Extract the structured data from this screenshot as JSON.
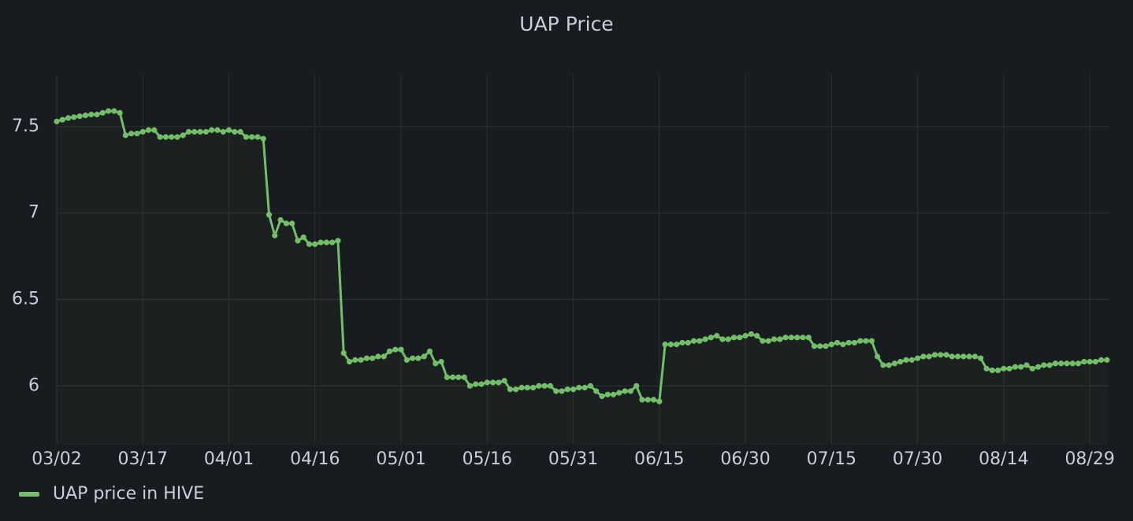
{
  "chart_data": {
    "type": "line",
    "title": "UAP Price",
    "x": [
      "03/02",
      "03/03",
      "03/04",
      "03/05",
      "03/06",
      "03/07",
      "03/08",
      "03/09",
      "03/10",
      "03/11",
      "03/12",
      "03/13",
      "03/14",
      "03/15",
      "03/16",
      "03/17",
      "03/18",
      "03/19",
      "03/20",
      "03/21",
      "03/22",
      "03/23",
      "03/24",
      "03/25",
      "03/26",
      "03/27",
      "03/28",
      "03/29",
      "03/30",
      "03/31",
      "04/01",
      "04/02",
      "04/03",
      "04/04",
      "04/05",
      "04/06",
      "04/07",
      "04/08",
      "04/09",
      "04/10",
      "04/11",
      "04/12",
      "04/13",
      "04/14",
      "04/15",
      "04/16",
      "04/17",
      "04/18",
      "04/19",
      "04/20",
      "04/21",
      "04/22",
      "04/23",
      "04/24",
      "04/25",
      "04/26",
      "04/27",
      "04/28",
      "04/29",
      "04/30",
      "05/01",
      "05/02",
      "05/03",
      "05/04",
      "05/05",
      "05/06",
      "05/07",
      "05/08",
      "05/09",
      "05/10",
      "05/11",
      "05/12",
      "05/13",
      "05/14",
      "05/15",
      "05/16",
      "05/17",
      "05/18",
      "05/19",
      "05/20",
      "05/21",
      "05/22",
      "05/23",
      "05/24",
      "05/25",
      "05/26",
      "05/27",
      "05/28",
      "05/29",
      "05/30",
      "05/31",
      "06/01",
      "06/02",
      "06/03",
      "06/04",
      "06/05",
      "06/06",
      "06/07",
      "06/08",
      "06/09",
      "06/10",
      "06/11",
      "06/12",
      "06/13",
      "06/14",
      "06/15",
      "06/16",
      "06/17",
      "06/18",
      "06/19",
      "06/20",
      "06/21",
      "06/22",
      "06/23",
      "06/24",
      "06/25",
      "06/26",
      "06/27",
      "06/28",
      "06/29",
      "06/30",
      "07/01",
      "07/02",
      "07/03",
      "07/04",
      "07/05",
      "07/06",
      "07/07",
      "07/08",
      "07/09",
      "07/10",
      "07/11",
      "07/12",
      "07/13",
      "07/14",
      "07/15",
      "07/16",
      "07/17",
      "07/18",
      "07/19",
      "07/20",
      "07/21",
      "07/22",
      "07/23",
      "07/24",
      "07/25",
      "07/26",
      "07/27",
      "07/28",
      "07/29",
      "07/30",
      "07/31",
      "08/01",
      "08/02",
      "08/03",
      "08/04",
      "08/05",
      "08/06",
      "08/07",
      "08/08",
      "08/09",
      "08/10",
      "08/11",
      "08/12",
      "08/13",
      "08/14",
      "08/15",
      "08/16",
      "08/17",
      "08/18",
      "08/19",
      "08/20",
      "08/21",
      "08/22",
      "08/23",
      "08/24",
      "08/25",
      "08/26",
      "08/27",
      "08/28",
      "08/29",
      "08/30",
      "08/31",
      "09/01"
    ],
    "series": [
      {
        "name": "UAP price in HIVE",
        "color": "#73bf69",
        "values": [
          7.53,
          7.54,
          7.55,
          7.555,
          7.56,
          7.565,
          7.57,
          7.57,
          7.58,
          7.59,
          7.59,
          7.58,
          7.45,
          7.46,
          7.46,
          7.47,
          7.48,
          7.48,
          7.44,
          7.44,
          7.44,
          7.44,
          7.45,
          7.47,
          7.47,
          7.47,
          7.47,
          7.48,
          7.48,
          7.47,
          7.48,
          7.47,
          7.47,
          7.44,
          7.44,
          7.44,
          7.43,
          6.99,
          6.87,
          6.96,
          6.94,
          6.94,
          6.84,
          6.86,
          6.82,
          6.82,
          6.83,
          6.83,
          6.83,
          6.84,
          6.19,
          6.14,
          6.15,
          6.15,
          6.16,
          6.16,
          6.17,
          6.17,
          6.2,
          6.21,
          6.21,
          6.15,
          6.16,
          6.16,
          6.17,
          6.2,
          6.13,
          6.14,
          6.05,
          6.05,
          6.05,
          6.05,
          6.0,
          6.01,
          6.01,
          6.02,
          6.02,
          6.02,
          6.03,
          5.98,
          5.98,
          5.99,
          5.99,
          5.99,
          6.0,
          6.0,
          6.0,
          5.97,
          5.97,
          5.98,
          5.98,
          5.99,
          5.99,
          6.0,
          5.97,
          5.94,
          5.95,
          5.95,
          5.96,
          5.97,
          5.97,
          6.0,
          5.92,
          5.92,
          5.92,
          5.91,
          6.24,
          6.24,
          6.24,
          6.25,
          6.25,
          6.26,
          6.26,
          6.27,
          6.28,
          6.29,
          6.27,
          6.27,
          6.28,
          6.28,
          6.29,
          6.3,
          6.29,
          6.26,
          6.26,
          6.27,
          6.27,
          6.28,
          6.28,
          6.28,
          6.28,
          6.28,
          6.23,
          6.23,
          6.23,
          6.24,
          6.25,
          6.24,
          6.25,
          6.25,
          6.26,
          6.26,
          6.26,
          6.17,
          6.12,
          6.12,
          6.13,
          6.14,
          6.15,
          6.15,
          6.16,
          6.17,
          6.17,
          6.18,
          6.18,
          6.18,
          6.17,
          6.17,
          6.17,
          6.17,
          6.17,
          6.16,
          6.1,
          6.09,
          6.09,
          6.1,
          6.1,
          6.11,
          6.11,
          6.12,
          6.1,
          6.11,
          6.12,
          6.12,
          6.13,
          6.13,
          6.13,
          6.13,
          6.13,
          6.14,
          6.14,
          6.14,
          6.15,
          6.15
        ]
      }
    ],
    "xticks": [
      "03/02",
      "03/17",
      "04/01",
      "04/16",
      "05/01",
      "05/16",
      "05/31",
      "06/15",
      "06/30",
      "07/15",
      "07/30",
      "08/14",
      "08/29"
    ],
    "ylim": [
      5.66,
      7.8
    ],
    "yticks": [
      6,
      6.5,
      7,
      7.5
    ],
    "grid": true,
    "legend": "bottom-left"
  }
}
